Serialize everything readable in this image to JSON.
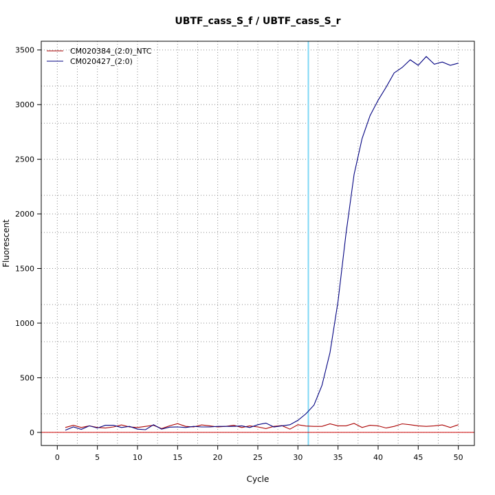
{
  "chart_data": {
    "type": "line",
    "title": "UBTF_cass_S_f / UBTF_cass_S_r",
    "xlabel": "Cycle",
    "ylabel": "Fluorescent",
    "xlim": [
      -2,
      52
    ],
    "ylim": [
      -120,
      3580
    ],
    "x_ticks": [
      0,
      5,
      10,
      15,
      20,
      25,
      30,
      35,
      40,
      45,
      50
    ],
    "y_ticks": [
      0,
      500,
      1000,
      1500,
      2000,
      2500,
      3000,
      3500
    ],
    "x_grid": [
      2.5,
      7.5,
      12.5,
      17.5,
      22.5,
      27.5,
      32.5,
      37.5,
      42.5,
      47.5
    ],
    "y_grid": [
      0,
      170,
      500,
      830,
      1000,
      1170,
      1500,
      1830,
      2000,
      2170,
      2500,
      2830,
      3000,
      3170,
      3500
    ],
    "grid": true,
    "legend_position": "top-left",
    "threshold": {
      "x": 31.3,
      "color": "#7fd7f5"
    },
    "baseline": {
      "y": 0,
      "color": "#cc0000"
    },
    "series": [
      {
        "name": "CM020384_(2:0)_NTC",
        "color": "#aa0000",
        "x": [
          1,
          2,
          3,
          4,
          5,
          6,
          7,
          8,
          9,
          10,
          11,
          12,
          13,
          14,
          15,
          16,
          17,
          18,
          19,
          20,
          21,
          22,
          23,
          24,
          25,
          26,
          27,
          28,
          29,
          30,
          31,
          32,
          33,
          34,
          35,
          36,
          37,
          38,
          39,
          40,
          41,
          42,
          43,
          44,
          45,
          46,
          47,
          48,
          49,
          50
        ],
        "values": [
          45,
          65,
          45,
          60,
          45,
          40,
          50,
          68,
          50,
          45,
          55,
          65,
          35,
          60,
          80,
          55,
          50,
          68,
          60,
          50,
          55,
          65,
          45,
          60,
          50,
          35,
          55,
          62,
          30,
          70,
          58,
          55,
          55,
          78,
          60,
          60,
          82,
          45,
          65,
          60,
          40,
          55,
          78,
          70,
          60,
          55,
          60,
          68,
          45,
          70
        ]
      },
      {
        "name": "CM020427_(2:0)",
        "color": "#000080",
        "x": [
          1,
          2,
          3,
          4,
          5,
          6,
          7,
          8,
          9,
          10,
          11,
          12,
          13,
          14,
          15,
          16,
          17,
          18,
          19,
          20,
          21,
          22,
          23,
          24,
          25,
          26,
          27,
          28,
          29,
          30,
          31,
          32,
          33,
          34,
          35,
          36,
          37,
          38,
          39,
          40,
          41,
          42,
          43,
          44,
          45,
          46,
          47,
          48,
          49,
          50
        ],
        "values": [
          20,
          50,
          28,
          60,
          40,
          65,
          65,
          45,
          55,
          30,
          25,
          70,
          30,
          48,
          50,
          45,
          55,
          50,
          50,
          55,
          55,
          55,
          60,
          45,
          70,
          85,
          50,
          60,
          70,
          110,
          170,
          250,
          430,
          730,
          1200,
          1820,
          2360,
          2690,
          2900,
          3040,
          3160,
          3290,
          3340,
          3410,
          3360,
          3440,
          3370,
          3390,
          3360,
          3380
        ]
      }
    ]
  }
}
